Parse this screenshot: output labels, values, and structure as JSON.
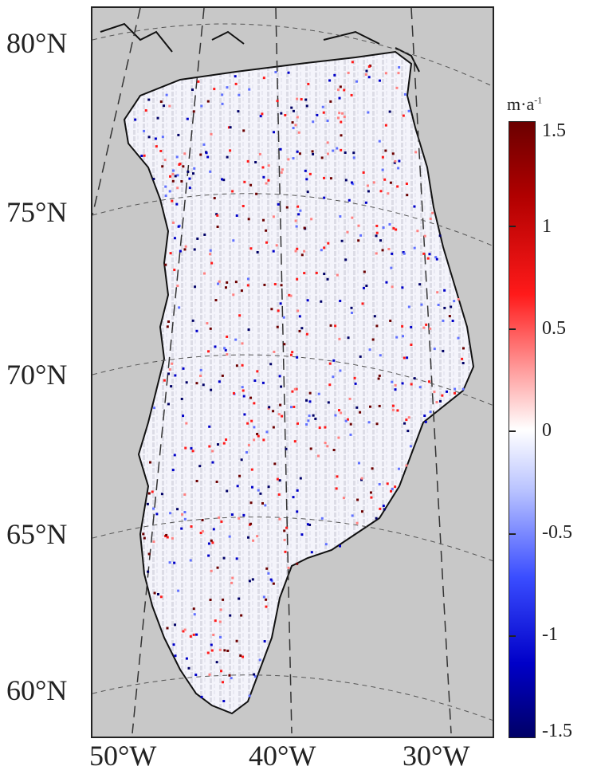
{
  "map": {
    "latitude_labels": [
      "80°N",
      "75°N",
      "70°N",
      "65°N",
      "60°N"
    ],
    "longitude_labels": [
      "50°W",
      "40°W",
      "30°W"
    ]
  },
  "colorbar": {
    "unit": "m·a",
    "unit_exponent": "-1",
    "tick_labels": [
      "1.5",
      "1",
      "0.5",
      "0",
      "-0.5",
      "-1",
      "-1.5"
    ],
    "range": [
      -1.5,
      1.5
    ],
    "colors": {
      "max": "#6b0000",
      "positive": "#ff1a1a",
      "zero": "#ffffff",
      "negative": "#0000c8",
      "min": "#000066"
    }
  },
  "background_color": "#c8c8c8"
}
